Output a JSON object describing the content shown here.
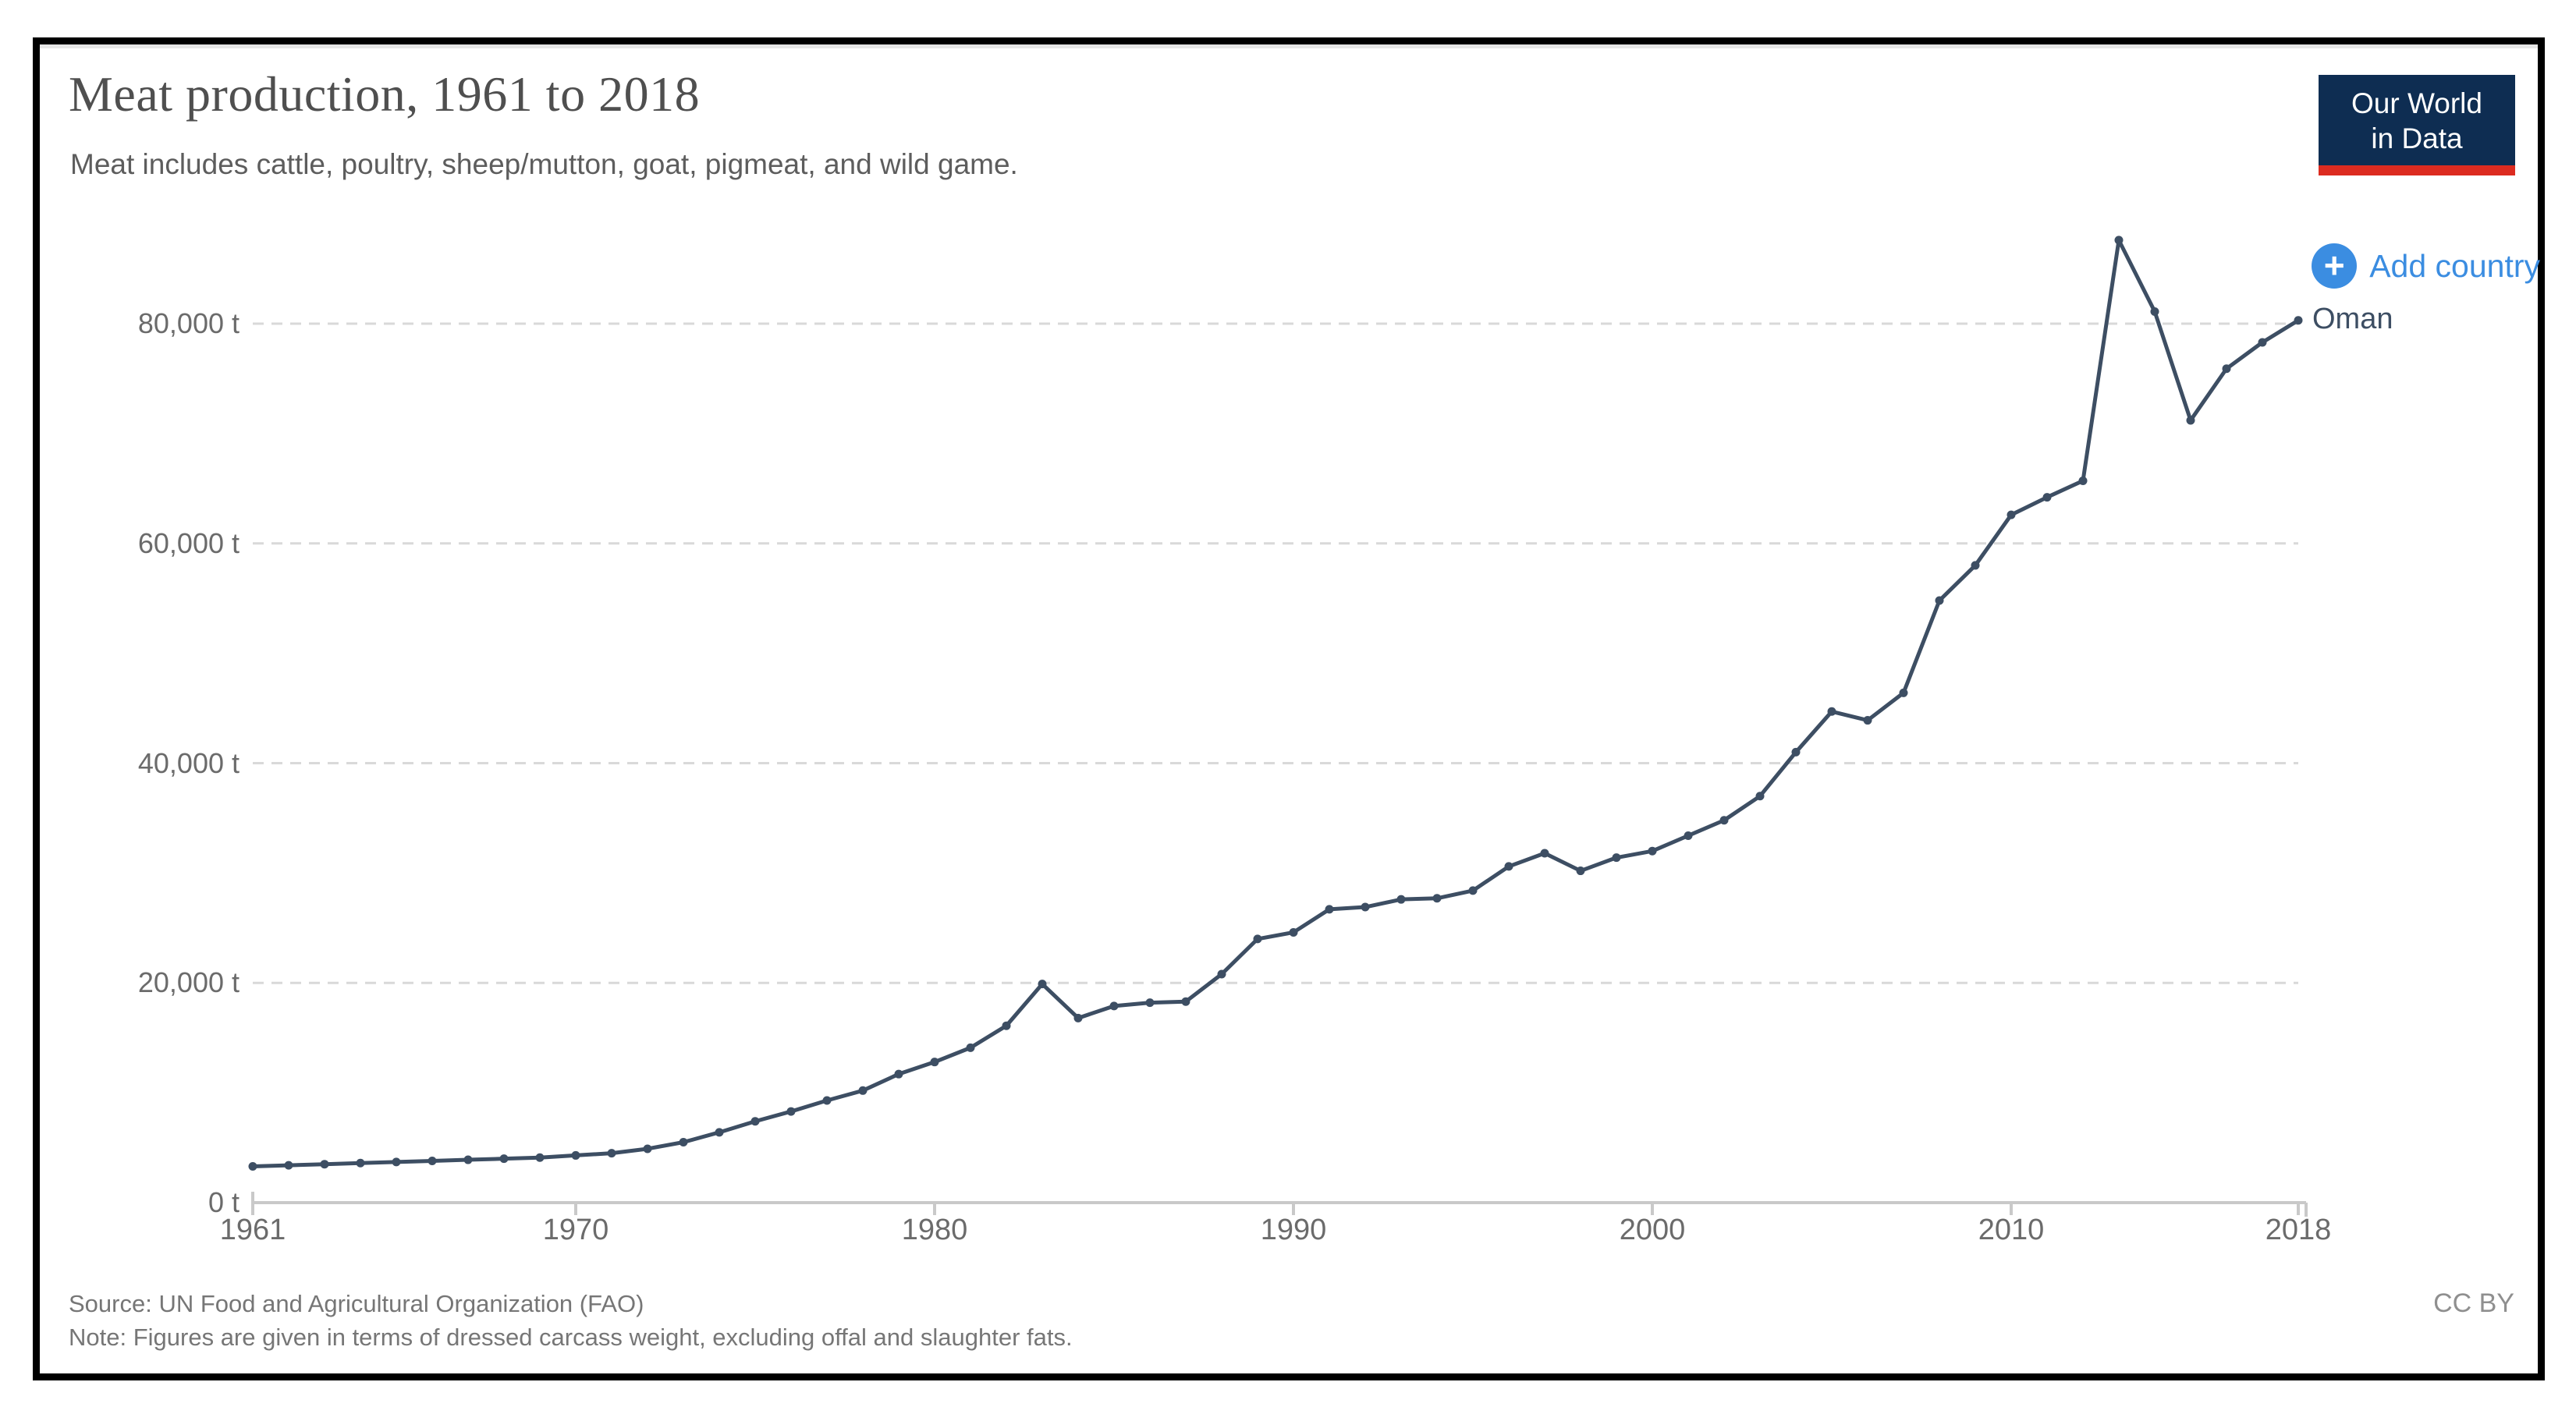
{
  "header": {
    "title": "Meat production, 1961 to 2018",
    "subtitle": "Meat includes cattle, poultry, sheep/mutton, goat, pigmeat, and wild game."
  },
  "logo": {
    "line1": "Our World",
    "line2": "in Data"
  },
  "controls": {
    "add_country_label": "Add country",
    "plus_icon": "+"
  },
  "footer": {
    "source": "Source: UN Food and Agricultural Organization (FAO)",
    "note": "Note: Figures are given in terms of dressed carcass weight, excluding offal and slaughter fats.",
    "license": "CC BY"
  },
  "colors": {
    "line": "#3d4e63",
    "accent_blue": "#3b8de1",
    "logo_bg": "#0e2d52",
    "logo_stripe": "#dc2b20",
    "grid": "#d9d9d9",
    "axis": "#c9c9c9",
    "muted_text": "#6b6b6b"
  },
  "chart_data": {
    "type": "line",
    "title": "Meat production, 1961 to 2018",
    "subtitle": "Meat includes cattle, poultry, sheep/mutton, goat, pigmeat, and wild game.",
    "xlabel": "",
    "ylabel": "tonnes",
    "unit": "t",
    "grid": "horizontal-dashed",
    "legend_position": "line-end-label",
    "xlim": [
      1961,
      2018
    ],
    "ylim": [
      0,
      88500
    ],
    "x_ticks": [
      1961,
      1970,
      1980,
      1990,
      2000,
      2010,
      2018
    ],
    "y_ticks": [
      0,
      20000,
      40000,
      60000,
      80000
    ],
    "y_tick_labels": [
      "0 t",
      "20,000 t",
      "40,000 t",
      "60,000 t",
      "80,000 t"
    ],
    "series": [
      {
        "name": "Oman",
        "color": "#3d4e63",
        "x": [
          1961,
          1962,
          1963,
          1964,
          1965,
          1966,
          1967,
          1968,
          1969,
          1970,
          1971,
          1972,
          1973,
          1974,
          1975,
          1976,
          1977,
          1978,
          1979,
          1980,
          1981,
          1982,
          1983,
          1984,
          1985,
          1986,
          1987,
          1988,
          1989,
          1990,
          1991,
          1992,
          1993,
          1994,
          1995,
          1996,
          1997,
          1998,
          1999,
          2000,
          2001,
          2002,
          2003,
          2004,
          2005,
          2006,
          2007,
          2008,
          2009,
          2010,
          2011,
          2012,
          2013,
          2014,
          2015,
          2016,
          2017,
          2018
        ],
        "values": [
          3300,
          3400,
          3500,
          3600,
          3700,
          3800,
          3900,
          4000,
          4100,
          4300,
          4500,
          4900,
          5500,
          6400,
          7400,
          8300,
          9300,
          10200,
          11700,
          12800,
          14100,
          16100,
          19900,
          16800,
          17900,
          18200,
          18300,
          20800,
          24000,
          24600,
          26700,
          26900,
          27600,
          27700,
          28400,
          30600,
          31800,
          30200,
          31400,
          32000,
          33400,
          34800,
          37000,
          41000,
          44700,
          43900,
          46400,
          54800,
          58000,
          62600,
          64200,
          65700,
          87600,
          81100,
          71200,
          75900,
          78300,
          80300
        ]
      }
    ]
  }
}
